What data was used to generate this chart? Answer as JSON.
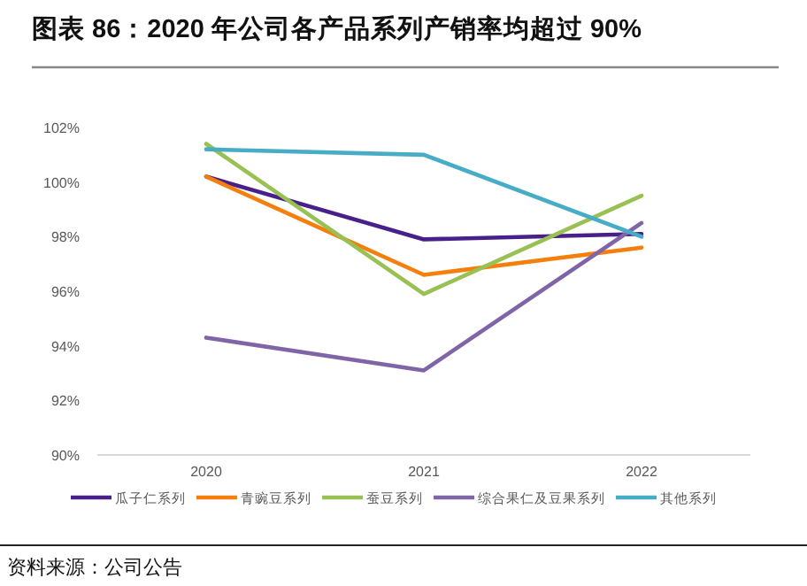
{
  "chart_data": {
    "type": "line",
    "title": "图表 86：2020 年公司各产品系列产销率均超过 90%",
    "categories": [
      "2020",
      "2021",
      "2022"
    ],
    "series": [
      {
        "name": "瓜子仁系列",
        "color": "#48208a",
        "values": [
          100.2,
          97.9,
          98.1
        ]
      },
      {
        "name": "青豌豆系列",
        "color": "#f47f0c",
        "values": [
          100.2,
          96.6,
          97.6
        ]
      },
      {
        "name": "蚕豆系列",
        "color": "#98c053",
        "values": [
          101.4,
          95.9,
          99.5
        ]
      },
      {
        "name": "综合果仁及豆果系列",
        "color": "#8064a8",
        "values": [
          94.3,
          93.1,
          98.5
        ]
      },
      {
        "name": "其他系列",
        "color": "#47acc6",
        "values": [
          101.2,
          101.0,
          98.0
        ]
      }
    ],
    "ylim": [
      90,
      102
    ],
    "yticks": [
      {
        "value": 90,
        "label": "90%"
      },
      {
        "value": 92,
        "label": "92%"
      },
      {
        "value": 94,
        "label": "94%"
      },
      {
        "value": 96,
        "label": "96%"
      },
      {
        "value": 98,
        "label": "98%"
      },
      {
        "value": 100,
        "label": "100%"
      },
      {
        "value": 102,
        "label": "102%"
      }
    ],
    "legend": "bottom",
    "annotations": [
      "资料来源：公司公告"
    ]
  }
}
